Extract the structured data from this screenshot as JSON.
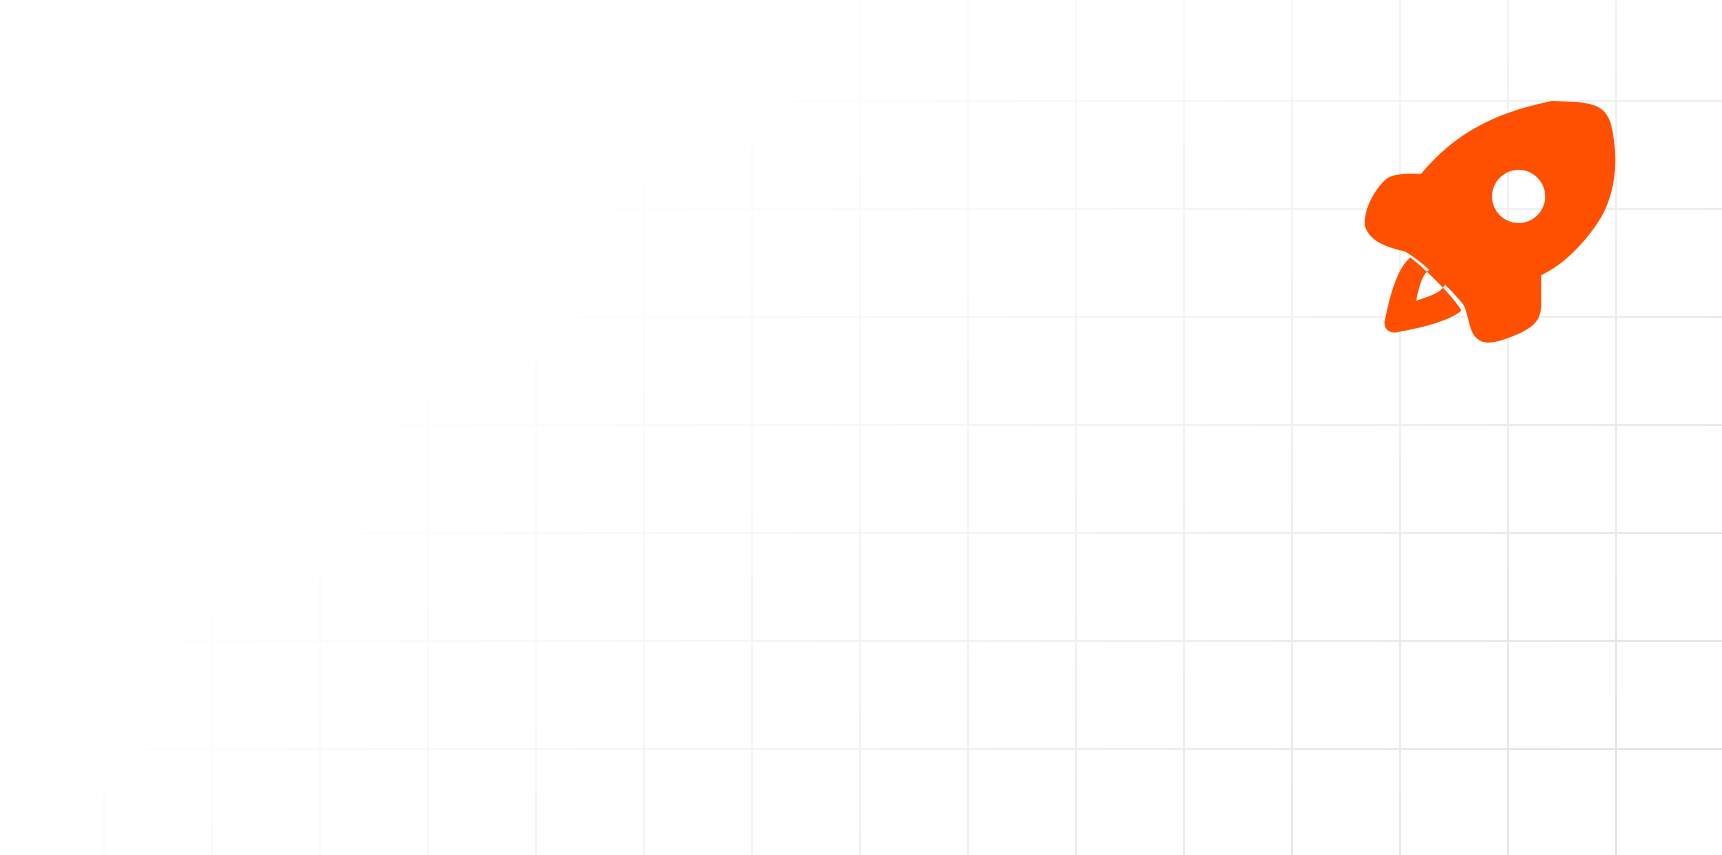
{
  "background": {
    "pattern": "grid",
    "line_color": "#e3e3e3",
    "fade": "top-left"
  },
  "illustration": {
    "icon": "rocket-icon",
    "color": "#ff4f00"
  }
}
